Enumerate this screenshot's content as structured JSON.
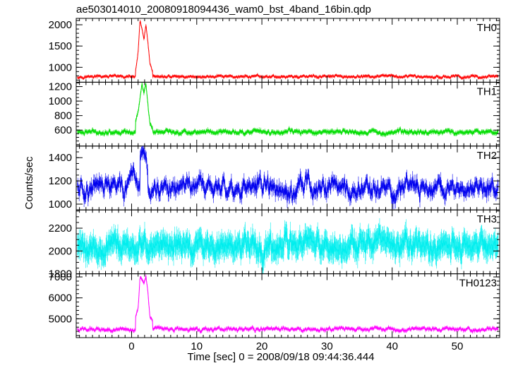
{
  "chart_data": {
    "type": "line",
    "title": "ae503014010_20080918094436_wam0_bst_4band_16bin.qdp",
    "xlabel": "Time [sec] 0 = 2008/09/18 09:44:36.444",
    "ylabel": "Counts/sec",
    "xlim": [
      -8.5,
      56.5
    ],
    "x_ticks": [
      0,
      10,
      20,
      30,
      40,
      50
    ],
    "grid": false,
    "error_bars": true,
    "panels": [
      {
        "name": "TH0",
        "color": "#ff0000",
        "ylim": [
          650,
          2150
        ],
        "y_ticks": [
          1000,
          1500,
          2000
        ],
        "baseline": 780,
        "noise": 32,
        "error": 28,
        "burst": [
          {
            "x": 0.6,
            "y": 900
          },
          {
            "x": 1.0,
            "y": 1350
          },
          {
            "x": 1.3,
            "y": 2120
          },
          {
            "x": 1.6,
            "y": 1900
          },
          {
            "x": 1.9,
            "y": 1650
          },
          {
            "x": 2.2,
            "y": 2000
          },
          {
            "x": 2.5,
            "y": 1600
          },
          {
            "x": 2.8,
            "y": 1100
          },
          {
            "x": 3.2,
            "y": 900
          }
        ]
      },
      {
        "name": "TH1",
        "color": "#00dd00",
        "ylim": [
          380,
          1260
        ],
        "y_ticks": [
          600,
          800,
          1000,
          1200
        ],
        "baseline": 575,
        "noise": 30,
        "error": 25,
        "burst": [
          {
            "x": 0.6,
            "y": 720
          },
          {
            "x": 1.0,
            "y": 850
          },
          {
            "x": 1.3,
            "y": 1050
          },
          {
            "x": 1.6,
            "y": 1230
          },
          {
            "x": 1.9,
            "y": 1100
          },
          {
            "x": 2.2,
            "y": 1250
          },
          {
            "x": 2.5,
            "y": 950
          },
          {
            "x": 2.8,
            "y": 700
          },
          {
            "x": 3.2,
            "y": 620
          }
        ]
      },
      {
        "name": "TH2",
        "color": "#0000ee",
        "ylim": [
          950,
          1500
        ],
        "y_ticks": [
          1000,
          1200,
          1400
        ],
        "baseline": 1140,
        "noise": 85,
        "error": 45,
        "burst": [
          {
            "x": 1.3,
            "y": 1380
          },
          {
            "x": 1.9,
            "y": 1470
          },
          {
            "x": 2.5,
            "y": 1300
          }
        ]
      },
      {
        "name": "TH3",
        "color": "#00eeee",
        "ylim": [
          1800,
          2360
        ],
        "y_ticks": [
          1800,
          2000,
          2200
        ],
        "baseline": 2040,
        "noise": 90,
        "error": 90,
        "burst": []
      },
      {
        "name": "TH0123",
        "color": "#ff00ff",
        "ylim": [
          4100,
          7150
        ],
        "y_ticks": [
          5000,
          6000,
          7000
        ],
        "baseline": 4500,
        "noise": 90,
        "error": 70,
        "burst": [
          {
            "x": 0.6,
            "y": 5100
          },
          {
            "x": 1.0,
            "y": 5500
          },
          {
            "x": 1.3,
            "y": 7000
          },
          {
            "x": 1.6,
            "y": 6900
          },
          {
            "x": 1.9,
            "y": 6700
          },
          {
            "x": 2.2,
            "y": 7050
          },
          {
            "x": 2.5,
            "y": 6300
          },
          {
            "x": 2.8,
            "y": 5100
          },
          {
            "x": 3.2,
            "y": 4900
          }
        ]
      }
    ]
  }
}
